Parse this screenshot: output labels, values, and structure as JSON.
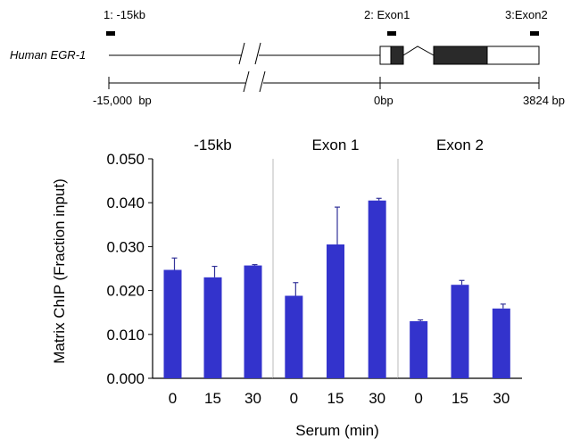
{
  "gene_map": {
    "gene_name": "Human EGR-1",
    "sites": [
      "1: -15kb",
      "2: Exon1",
      "3:Exon2"
    ],
    "scale_labels": [
      "-15,000  bp",
      "0bp",
      "3824 bp"
    ]
  },
  "chart_data": {
    "type": "bar",
    "ylabel": "Matrix ChIP (Fraction input)",
    "xlabel": "Serum (min)",
    "ylim": [
      0,
      0.05
    ],
    "yticks": [
      "0.000",
      "0.010",
      "0.020",
      "0.030",
      "0.040",
      "0.050"
    ],
    "ytick_values": [
      0,
      0.01,
      0.02,
      0.03,
      0.04,
      0.05
    ],
    "categories": [
      "0",
      "15",
      "30"
    ],
    "bar_color": "#3333cc",
    "grid": false,
    "panels": [
      {
        "title": "-15kb",
        "values": [
          0.0247,
          0.023,
          0.0257
        ],
        "errors": [
          0.0027,
          0.0025,
          0.0002
        ]
      },
      {
        "title": "Exon 1",
        "values": [
          0.0188,
          0.0305,
          0.0405
        ],
        "errors": [
          0.003,
          0.0085,
          0.0005
        ]
      },
      {
        "title": "Exon 2",
        "values": [
          0.013,
          0.0213,
          0.0159
        ],
        "errors": [
          0.0003,
          0.001,
          0.001
        ]
      }
    ]
  }
}
